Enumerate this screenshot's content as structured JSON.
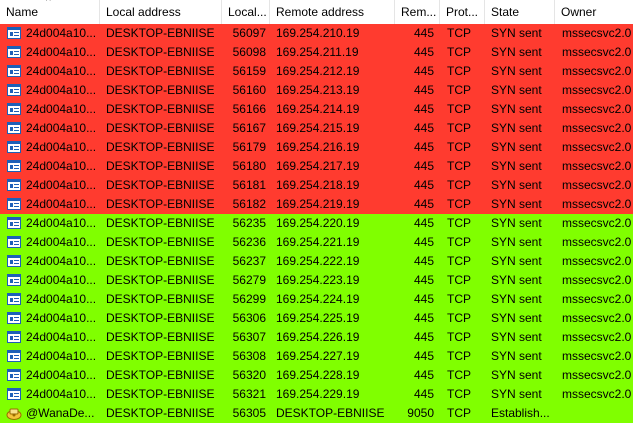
{
  "columns": {
    "name": "Name",
    "local_address": "Local address",
    "local_port": "Local...",
    "remote_address": "Remote address",
    "remote_port": "Rem...",
    "protocol": "Prot...",
    "state": "State",
    "owner": "Owner"
  },
  "colors": {
    "highlight_red": "#ff3b2f",
    "highlight_green": "#80ff00",
    "normal": "#ffffff"
  },
  "rows": [
    {
      "name": "24d004a10...",
      "local": "DESKTOP-EBNIISE",
      "lport": "56097",
      "remote": "169.254.210.19",
      "rport": "445",
      "proto": "TCP",
      "state": "SYN sent",
      "owner": "mssecsvc2.0",
      "highlight": "red",
      "icon": "mssecsvc-exe-icon"
    },
    {
      "name": "24d004a10...",
      "local": "DESKTOP-EBNIISE",
      "lport": "56098",
      "remote": "169.254.211.19",
      "rport": "445",
      "proto": "TCP",
      "state": "SYN sent",
      "owner": "mssecsvc2.0",
      "highlight": "red",
      "icon": "mssecsvc-exe-icon"
    },
    {
      "name": "24d004a10...",
      "local": "DESKTOP-EBNIISE",
      "lport": "56159",
      "remote": "169.254.212.19",
      "rport": "445",
      "proto": "TCP",
      "state": "SYN sent",
      "owner": "mssecsvc2.0",
      "highlight": "red",
      "icon": "mssecsvc-exe-icon"
    },
    {
      "name": "24d004a10...",
      "local": "DESKTOP-EBNIISE",
      "lport": "56160",
      "remote": "169.254.213.19",
      "rport": "445",
      "proto": "TCP",
      "state": "SYN sent",
      "owner": "mssecsvc2.0",
      "highlight": "red",
      "icon": "mssecsvc-exe-icon"
    },
    {
      "name": "24d004a10...",
      "local": "DESKTOP-EBNIISE",
      "lport": "56166",
      "remote": "169.254.214.19",
      "rport": "445",
      "proto": "TCP",
      "state": "SYN sent",
      "owner": "mssecsvc2.0",
      "highlight": "red",
      "icon": "mssecsvc-exe-icon"
    },
    {
      "name": "24d004a10...",
      "local": "DESKTOP-EBNIISE",
      "lport": "56167",
      "remote": "169.254.215.19",
      "rport": "445",
      "proto": "TCP",
      "state": "SYN sent",
      "owner": "mssecsvc2.0",
      "highlight": "red",
      "icon": "mssecsvc-exe-icon"
    },
    {
      "name": "24d004a10...",
      "local": "DESKTOP-EBNIISE",
      "lport": "56179",
      "remote": "169.254.216.19",
      "rport": "445",
      "proto": "TCP",
      "state": "SYN sent",
      "owner": "mssecsvc2.0",
      "highlight": "red",
      "icon": "mssecsvc-exe-icon"
    },
    {
      "name": "24d004a10...",
      "local": "DESKTOP-EBNIISE",
      "lport": "56180",
      "remote": "169.254.217.19",
      "rport": "445",
      "proto": "TCP",
      "state": "SYN sent",
      "owner": "mssecsvc2.0",
      "highlight": "red",
      "icon": "mssecsvc-exe-icon"
    },
    {
      "name": "24d004a10...",
      "local": "DESKTOP-EBNIISE",
      "lport": "56181",
      "remote": "169.254.218.19",
      "rport": "445",
      "proto": "TCP",
      "state": "SYN sent",
      "owner": "mssecsvc2.0",
      "highlight": "red",
      "icon": "mssecsvc-exe-icon"
    },
    {
      "name": "24d004a10...",
      "local": "DESKTOP-EBNIISE",
      "lport": "56182",
      "remote": "169.254.219.19",
      "rport": "445",
      "proto": "TCP",
      "state": "SYN sent",
      "owner": "mssecsvc2.0",
      "highlight": "red",
      "icon": "mssecsvc-exe-icon"
    },
    {
      "name": "24d004a10...",
      "local": "DESKTOP-EBNIISE",
      "lport": "56235",
      "remote": "169.254.220.19",
      "rport": "445",
      "proto": "TCP",
      "state": "SYN sent",
      "owner": "mssecsvc2.0",
      "highlight": "green",
      "icon": "mssecsvc-exe-icon"
    },
    {
      "name": "24d004a10...",
      "local": "DESKTOP-EBNIISE",
      "lport": "56236",
      "remote": "169.254.221.19",
      "rport": "445",
      "proto": "TCP",
      "state": "SYN sent",
      "owner": "mssecsvc2.0",
      "highlight": "green",
      "icon": "mssecsvc-exe-icon"
    },
    {
      "name": "24d004a10...",
      "local": "DESKTOP-EBNIISE",
      "lport": "56237",
      "remote": "169.254.222.19",
      "rport": "445",
      "proto": "TCP",
      "state": "SYN sent",
      "owner": "mssecsvc2.0",
      "highlight": "green",
      "icon": "mssecsvc-exe-icon"
    },
    {
      "name": "24d004a10...",
      "local": "DESKTOP-EBNIISE",
      "lport": "56279",
      "remote": "169.254.223.19",
      "rport": "445",
      "proto": "TCP",
      "state": "SYN sent",
      "owner": "mssecsvc2.0",
      "highlight": "green",
      "icon": "mssecsvc-exe-icon"
    },
    {
      "name": "24d004a10...",
      "local": "DESKTOP-EBNIISE",
      "lport": "56299",
      "remote": "169.254.224.19",
      "rport": "445",
      "proto": "TCP",
      "state": "SYN sent",
      "owner": "mssecsvc2.0",
      "highlight": "green",
      "icon": "mssecsvc-exe-icon"
    },
    {
      "name": "24d004a10...",
      "local": "DESKTOP-EBNIISE",
      "lport": "56306",
      "remote": "169.254.225.19",
      "rport": "445",
      "proto": "TCP",
      "state": "SYN sent",
      "owner": "mssecsvc2.0",
      "highlight": "green",
      "icon": "mssecsvc-exe-icon"
    },
    {
      "name": "24d004a10...",
      "local": "DESKTOP-EBNIISE",
      "lport": "56307",
      "remote": "169.254.226.19",
      "rport": "445",
      "proto": "TCP",
      "state": "SYN sent",
      "owner": "mssecsvc2.0",
      "highlight": "green",
      "icon": "mssecsvc-exe-icon"
    },
    {
      "name": "24d004a10...",
      "local": "DESKTOP-EBNIISE",
      "lport": "56308",
      "remote": "169.254.227.19",
      "rport": "445",
      "proto": "TCP",
      "state": "SYN sent",
      "owner": "mssecsvc2.0",
      "highlight": "green",
      "icon": "mssecsvc-exe-icon"
    },
    {
      "name": "24d004a10...",
      "local": "DESKTOP-EBNIISE",
      "lport": "56320",
      "remote": "169.254.228.19",
      "rport": "445",
      "proto": "TCP",
      "state": "SYN sent",
      "owner": "mssecsvc2.0",
      "highlight": "green",
      "icon": "mssecsvc-exe-icon"
    },
    {
      "name": "24d004a10...",
      "local": "DESKTOP-EBNIISE",
      "lport": "56321",
      "remote": "169.254.229.19",
      "rport": "445",
      "proto": "TCP",
      "state": "SYN sent",
      "owner": "mssecsvc2.0",
      "highlight": "green",
      "icon": "mssecsvc-exe-icon"
    },
    {
      "name": "@WanaDe...",
      "local": "DESKTOP-EBNIISE",
      "lport": "56305",
      "remote": "DESKTOP-EBNIISE",
      "rport": "9050",
      "proto": "TCP",
      "state": "Establish...",
      "owner": "",
      "highlight": "green",
      "icon": "wanadecryptor-icon"
    }
  ]
}
